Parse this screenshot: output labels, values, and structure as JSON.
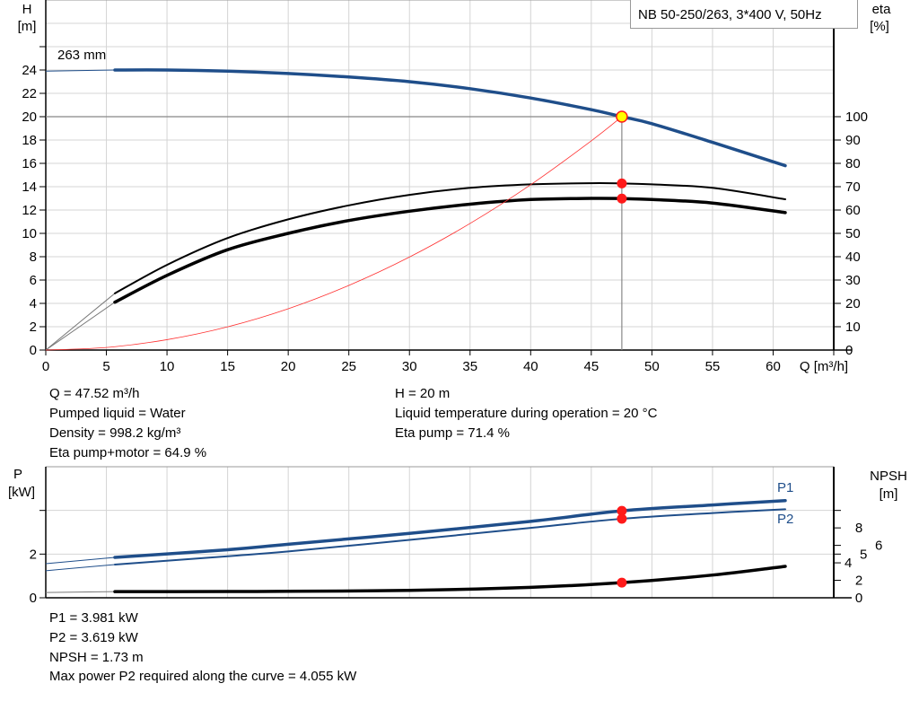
{
  "title": "NB 50-250/263, 3*400 V, 50Hz",
  "impeller_label": "263 mm",
  "colors": {
    "head": "#1f4e8a",
    "efficiency": "#000000",
    "system": "#ff3030",
    "power": "#1f4e8a",
    "npsh": "#000000",
    "marker": "#ff1a1a",
    "duty_marker": "#ffff00",
    "grid": "#d4d4d4"
  },
  "chart_data": [
    {
      "type": "line",
      "xlabel": "Q [m³/h]",
      "ylabel": "H\n[m]",
      "ylabel_line1": "H",
      "ylabel_line2": "[m]",
      "y2label_line1": "eta",
      "y2label_line2": "[%]",
      "xlim": [
        0,
        65
      ],
      "ylim": [
        0,
        30
      ],
      "y2lim": [
        0,
        150
      ],
      "xticks": [
        0,
        5,
        10,
        15,
        20,
        25,
        30,
        35,
        40,
        45,
        50,
        55,
        60
      ],
      "yticks": [
        0,
        2,
        4,
        6,
        8,
        10,
        12,
        14,
        16,
        18,
        20,
        22,
        24
      ],
      "y2ticks": [
        0,
        10,
        20,
        30,
        40,
        50,
        60,
        70,
        80,
        90,
        100
      ],
      "grid": true,
      "curve_start_q": 5.7,
      "series": [
        {
          "key": "head",
          "axis": "left",
          "x": [
            0,
            5.7,
            10,
            15,
            20,
            25,
            30,
            35,
            40,
            45,
            47.52,
            50,
            55,
            61
          ],
          "y": [
            23.9,
            24.0,
            24.0,
            23.9,
            23.7,
            23.4,
            23.0,
            22.4,
            21.6,
            20.6,
            20.0,
            19.4,
            17.8,
            15.8
          ]
        },
        {
          "key": "eta_pump",
          "axis": "right",
          "x": [
            0,
            5.7,
            10,
            15,
            20,
            25,
            30,
            35,
            40,
            45,
            47.52,
            50,
            55,
            61
          ],
          "y": [
            0,
            24.3,
            36.5,
            48,
            56,
            62,
            66.5,
            69.5,
            71,
            71.5,
            71.4,
            71,
            69.5,
            64.6
          ]
        },
        {
          "key": "eta_pump_motor",
          "axis": "right",
          "x": [
            0,
            5.7,
            10,
            15,
            20,
            25,
            30,
            35,
            40,
            45,
            47.52,
            50,
            55,
            61
          ],
          "y": [
            0,
            20.5,
            32,
            43,
            50,
            55.5,
            59.5,
            62.5,
            64.5,
            65,
            64.9,
            64.5,
            63,
            58.9
          ]
        },
        {
          "key": "system_curve",
          "axis": "left",
          "x": [
            0,
            5,
            10,
            15,
            20,
            25,
            30,
            35,
            40,
            45,
            47.52
          ],
          "y": [
            0,
            0.22,
            0.89,
            1.99,
            3.54,
            5.54,
            7.97,
            10.85,
            14.17,
            17.93,
            20
          ]
        }
      ],
      "duty_point": {
        "Q": 47.52,
        "H": 20,
        "eta_pump": 71.4,
        "eta_pump_motor": 64.9
      }
    },
    {
      "type": "line",
      "ylabel_line1": "P",
      "ylabel_line2": "[kW]",
      "y2label_line1": "NPSH",
      "y2label_line2": "[m]",
      "xlim": [
        0,
        65
      ],
      "ylim": [
        0,
        6
      ],
      "y2lim": [
        0,
        15
      ],
      "yticks": [
        0,
        2,
        4
      ],
      "yticklabels": [
        "0",
        "2",
        ""
      ],
      "y2ticks": [
        0,
        2,
        4,
        5,
        6,
        8
      ],
      "grid": true,
      "curve_start_q": 5.7,
      "series": [
        {
          "key": "P1",
          "name": "P1",
          "axis": "left",
          "x": [
            0,
            5.7,
            15,
            20,
            30,
            40,
            47.52,
            55,
            61
          ],
          "y": [
            1.56,
            1.85,
            2.2,
            2.45,
            2.95,
            3.5,
            3.981,
            4.25,
            4.45
          ]
        },
        {
          "key": "P2",
          "name": "P2",
          "axis": "left",
          "x": [
            0,
            5.7,
            15,
            20,
            30,
            40,
            47.52,
            55,
            61
          ],
          "y": [
            1.24,
            1.52,
            1.9,
            2.12,
            2.65,
            3.2,
            3.619,
            3.88,
            4.055
          ]
        },
        {
          "key": "NPSH",
          "axis": "right",
          "x": [
            0,
            5.7,
            15,
            20,
            30,
            40,
            47.52,
            55,
            61
          ],
          "y": [
            0.6,
            0.7,
            0.72,
            0.74,
            0.85,
            1.2,
            1.73,
            2.6,
            3.6
          ]
        }
      ],
      "duty_point": {
        "Q": 47.52,
        "P1": 3.981,
        "P2": 3.619,
        "NPSH": 1.73
      }
    }
  ],
  "info_top": {
    "left": [
      "Q = 47.52 m³/h",
      "Pumped liquid = Water",
      "Density = 998.2 kg/m³",
      "Eta pump+motor = 64.9 %"
    ],
    "right": [
      "H = 20 m",
      "Liquid temperature during operation = 20 °C",
      "Eta pump = 71.4 %"
    ]
  },
  "info_bottom": [
    "P1 = 3.981 kW",
    "P2 = 3.619 kW",
    "NPSH = 1.73 m",
    "Max power P2 required along the curve = 4.055 kW"
  ]
}
